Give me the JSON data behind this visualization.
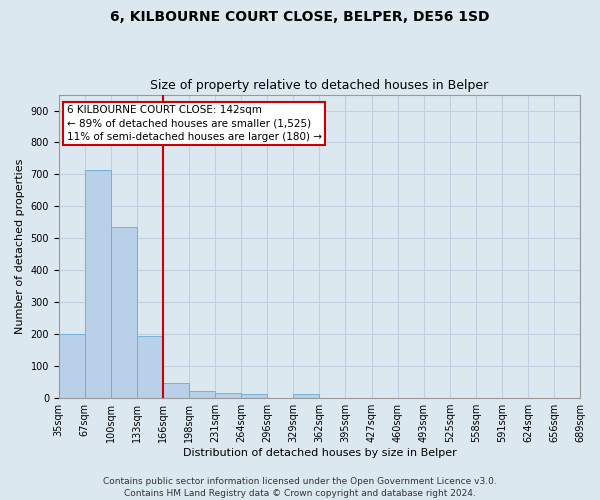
{
  "title": "6, KILBOURNE COURT CLOSE, BELPER, DE56 1SD",
  "subtitle": "Size of property relative to detached houses in Belper",
  "xlabel": "Distribution of detached houses by size in Belper",
  "ylabel": "Number of detached properties",
  "bar_values": [
    200,
    715,
    535,
    193,
    47,
    22,
    14,
    11,
    0,
    11,
    0,
    0,
    0,
    0,
    0,
    0,
    0,
    0,
    0,
    0
  ],
  "bin_labels": [
    "35sqm",
    "67sqm",
    "100sqm",
    "133sqm",
    "166sqm",
    "198sqm",
    "231sqm",
    "264sqm",
    "296sqm",
    "329sqm",
    "362sqm",
    "395sqm",
    "427sqm",
    "460sqm",
    "493sqm",
    "525sqm",
    "558sqm",
    "591sqm",
    "624sqm",
    "656sqm",
    "689sqm"
  ],
  "bar_color": "#b8d0e8",
  "bar_edge_color": "#6aaad4",
  "grid_color": "#c0d0e0",
  "background_color": "#dce8f0",
  "vline_color": "#cc0000",
  "annotation_text": "6 KILBOURNE COURT CLOSE: 142sqm\n← 89% of detached houses are smaller (1,525)\n11% of semi-detached houses are larger (180) →",
  "annotation_box_facecolor": "#ffffff",
  "annotation_box_edgecolor": "#cc0000",
  "annotation_text_color": "#000000",
  "ylim": [
    0,
    950
  ],
  "yticks": [
    0,
    100,
    200,
    300,
    400,
    500,
    600,
    700,
    800,
    900
  ],
  "footer_line1": "Contains HM Land Registry data © Crown copyright and database right 2024.",
  "footer_line2": "Contains public sector information licensed under the Open Government Licence v3.0.",
  "title_fontsize": 10,
  "subtitle_fontsize": 9,
  "axis_label_fontsize": 8,
  "tick_fontsize": 7,
  "annotation_fontsize": 7.5,
  "footer_fontsize": 6.5
}
